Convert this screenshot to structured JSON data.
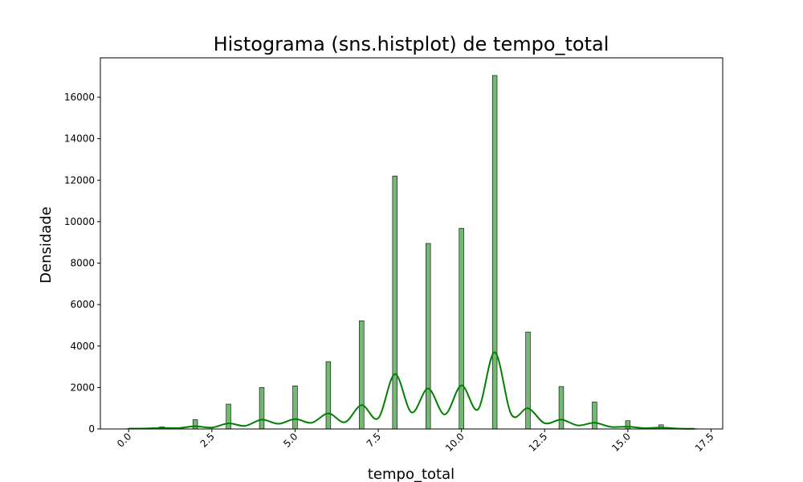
{
  "chart_data": {
    "type": "bar",
    "title": "Histograma (sns.histplot) de tempo_total",
    "xlabel": "tempo_total",
    "ylabel": "Densidade",
    "xlim": [
      -0.85,
      17.85
    ],
    "ylim": [
      0,
      17900
    ],
    "xticks": [
      0.0,
      2.5,
      5.0,
      7.5,
      10.0,
      12.5,
      15.0,
      17.5
    ],
    "xtick_labels": [
      "0.0",
      "2.5",
      "5.0",
      "7.5",
      "10.0",
      "12.5",
      "15.0",
      "17.5"
    ],
    "yticks": [
      0,
      2000,
      4000,
      6000,
      8000,
      10000,
      12000,
      14000,
      16000
    ],
    "ytick_labels": [
      "0",
      "2000",
      "4000",
      "6000",
      "8000",
      "10000",
      "12000",
      "14000",
      "16000"
    ],
    "xtick_rotation": 45,
    "grid": false,
    "legend": "none",
    "bar_color": "#008000",
    "bar_alpha": 0.55,
    "bar_edge_color": "#000000",
    "kde_color": "#008000",
    "bars": [
      {
        "x": 0,
        "value": 15
      },
      {
        "x": 1,
        "value": 100
      },
      {
        "x": 2,
        "value": 450
      },
      {
        "x": 3,
        "value": 1200
      },
      {
        "x": 4,
        "value": 2000
      },
      {
        "x": 5,
        "value": 2080
      },
      {
        "x": 6,
        "value": 3250
      },
      {
        "x": 7,
        "value": 5220
      },
      {
        "x": 8,
        "value": 12200
      },
      {
        "x": 9,
        "value": 8950
      },
      {
        "x": 10,
        "value": 9680
      },
      {
        "x": 11,
        "value": 17050
      },
      {
        "x": 12,
        "value": 4680
      },
      {
        "x": 13,
        "value": 2050
      },
      {
        "x": 14,
        "value": 1300
      },
      {
        "x": 15,
        "value": 400
      },
      {
        "x": 16,
        "value": 200
      },
      {
        "x": 17,
        "value": 15
      }
    ],
    "bar_width": 0.14,
    "kde": {
      "x": [
        0,
        0.5,
        1,
        1.5,
        2,
        2.5,
        3,
        3.5,
        4,
        4.5,
        5,
        5.5,
        6,
        6.5,
        7,
        7.5,
        8,
        8.5,
        9,
        9.5,
        10,
        10.5,
        11,
        11.5,
        12,
        12.5,
        13,
        13.5,
        14,
        14.5,
        15,
        15.5,
        16,
        16.5,
        17
      ],
      "y": [
        20,
        25,
        55,
        45,
        130,
        70,
        270,
        150,
        450,
        250,
        480,
        300,
        750,
        330,
        1150,
        520,
        2650,
        800,
        1950,
        700,
        2100,
        950,
        3700,
        700,
        1000,
        280,
        450,
        170,
        300,
        100,
        110,
        40,
        70,
        20,
        10
      ]
    }
  }
}
